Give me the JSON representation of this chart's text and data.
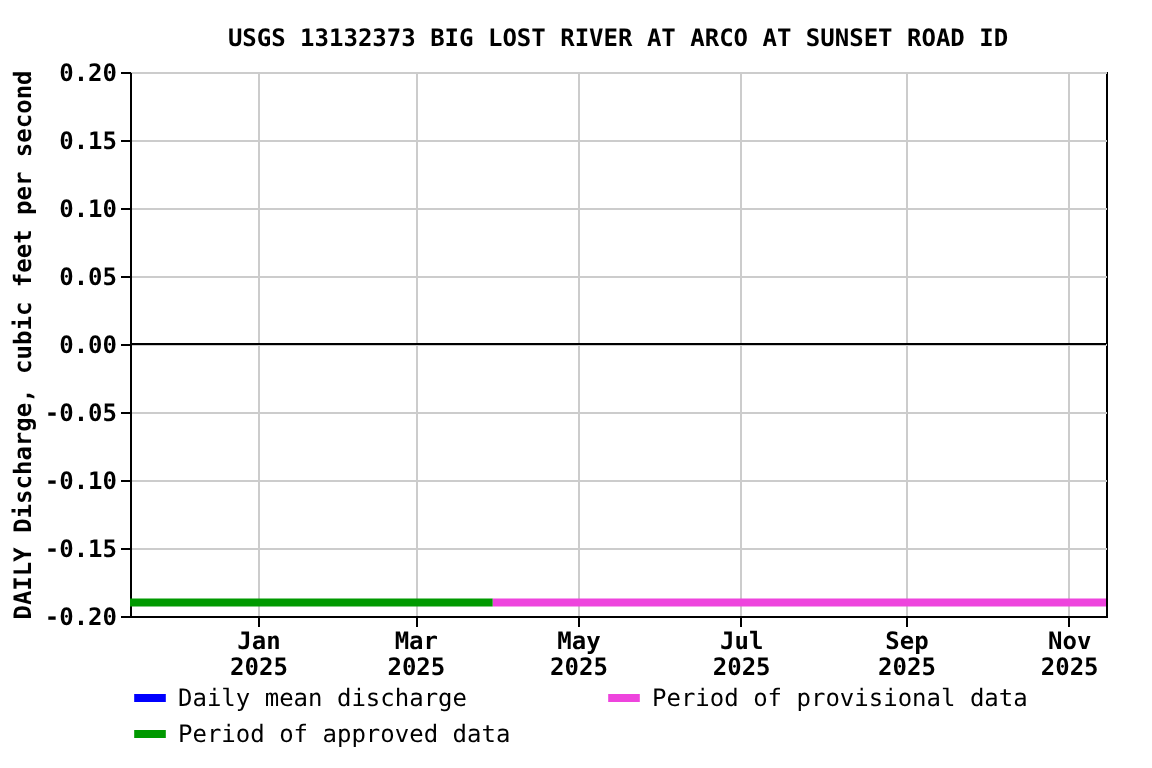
{
  "chart_data": {
    "type": "line",
    "title": "USGS 13132373 BIG LOST RIVER AT ARCO AT SUNSET ROAD ID",
    "ylabel": "DAILY Discharge, cubic feet per second",
    "xlim": [
      "2024-11-14",
      "2025-11-15"
    ],
    "xticks": [
      {
        "value": "2025-01-01",
        "label": "Jan 2025"
      },
      {
        "value": "2025-03-01",
        "label": "Mar 2025"
      },
      {
        "value": "2025-05-01",
        "label": "May 2025"
      },
      {
        "value": "2025-07-01",
        "label": "Jul 2025"
      },
      {
        "value": "2025-09-01",
        "label": "Sep 2025"
      },
      {
        "value": "2025-11-01",
        "label": "Nov 2025"
      }
    ],
    "ylim": [
      -0.2,
      0.2
    ],
    "yticks": [
      {
        "value": -0.2,
        "label": "-0.20"
      },
      {
        "value": -0.15,
        "label": "-0.15"
      },
      {
        "value": -0.1,
        "label": "-0.10"
      },
      {
        "value": -0.05,
        "label": "-0.05"
      },
      {
        "value": 0,
        "label": "0.00"
      },
      {
        "value": 0.05,
        "label": "0.05"
      },
      {
        "value": 0.1,
        "label": "0.10"
      },
      {
        "value": 0.15,
        "label": "0.15"
      },
      {
        "value": 0.2,
        "label": "0.20"
      }
    ],
    "series": [
      {
        "name": "Daily mean discharge",
        "color": "#0000ff"
      },
      {
        "name": "Period of provisional data",
        "color": "#ee44dd",
        "x": [
          "2025-03-30",
          "2025-11-15"
        ],
        "values": [
          -0.19,
          -0.19
        ]
      },
      {
        "name": "Period of approved data",
        "color": "#009900",
        "x": [
          "2024-11-14",
          "2025-03-30"
        ],
        "values": [
          -0.19,
          -0.19
        ]
      }
    ],
    "ref_lines": [
      {
        "axis": "y",
        "value": 0,
        "color": "#000000"
      }
    ],
    "grid": true,
    "legend": "bottom"
  }
}
